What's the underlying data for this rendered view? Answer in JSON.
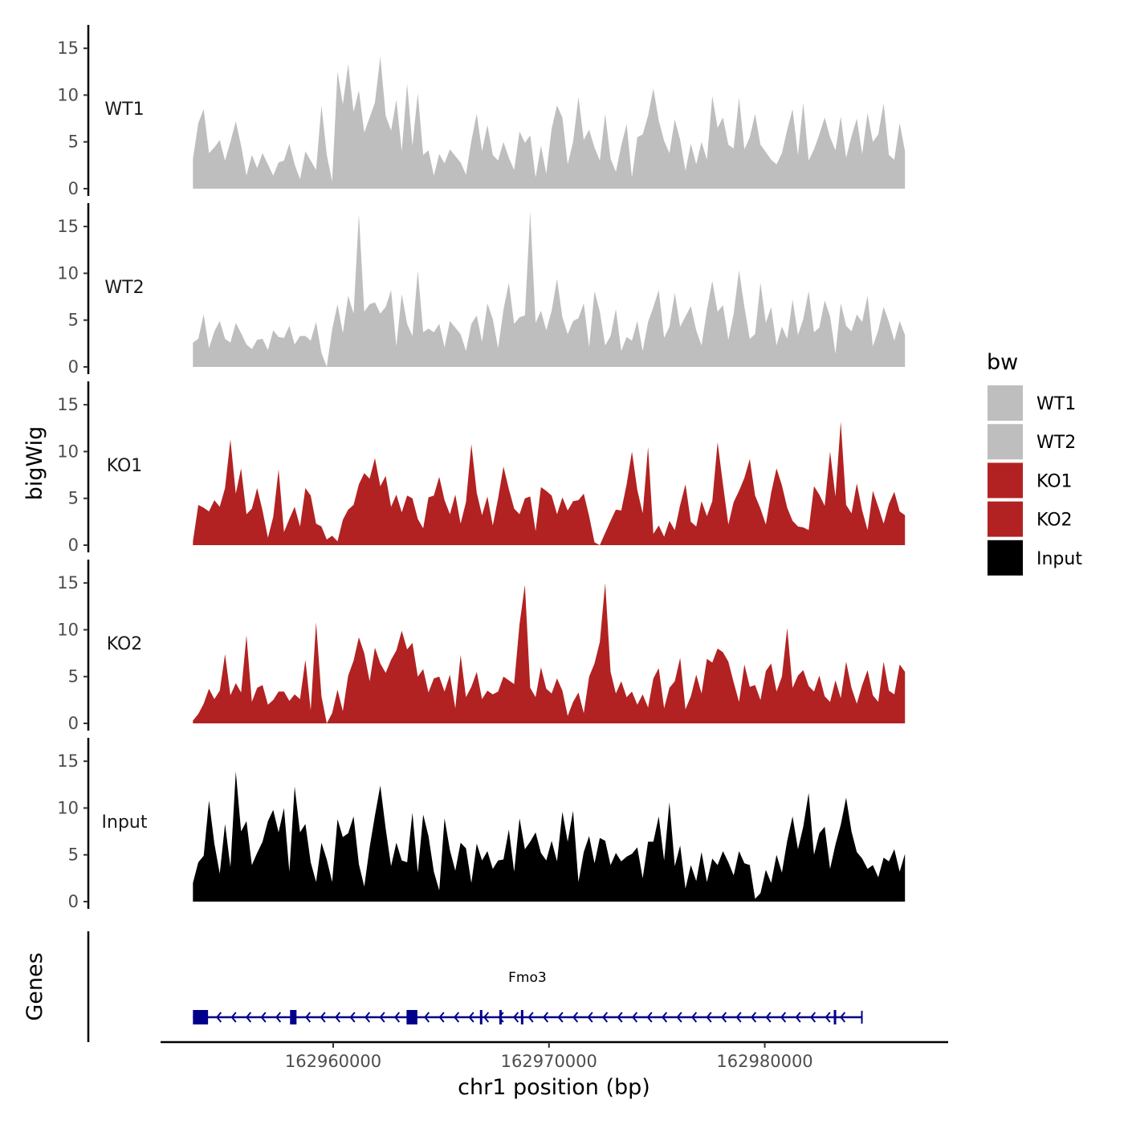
{
  "chart_data": {
    "type": "area",
    "y_axis_title": "bigWig",
    "x_axis_title": "chr1 position (bp)",
    "x_range": [
      162953500,
      162986500
    ],
    "x_limits": [
      162952000,
      162988500
    ],
    "x_ticks": [
      162960000,
      162970000,
      162980000
    ],
    "x_tick_labels": [
      "162960000",
      "162970000",
      "162980000"
    ],
    "y_range": [
      0,
      17.5
    ],
    "y_ticks": [
      0,
      5,
      10,
      15
    ],
    "y_tick_labels": [
      "0",
      "5",
      "10",
      "15"
    ],
    "legend": {
      "title": "bw",
      "placement": "right",
      "entries": [
        {
          "label": "WT1",
          "color": "#bebebe"
        },
        {
          "label": "WT2",
          "color": "#bebebe"
        },
        {
          "label": "KO1",
          "color": "#b22222"
        },
        {
          "label": "KO2",
          "color": "#b22222"
        },
        {
          "label": "Input",
          "color": "#000000"
        }
      ]
    },
    "series": [
      {
        "name": "WT1",
        "color": "#bebebe",
        "values": [
          3.2,
          7.0,
          8.5,
          3.8,
          4.4,
          5.2,
          3.0,
          5.0,
          7.2,
          4.6,
          1.4,
          3.6,
          2.2,
          3.8,
          2.6,
          1.4,
          2.8,
          3.0,
          4.8,
          2.6,
          1.0,
          4.0,
          3.0,
          2.0,
          8.9,
          3.6,
          0.8,
          12.5,
          9.0,
          13.3,
          8.2,
          10.5,
          6.0,
          7.6,
          9.2,
          14.1,
          7.8,
          6.2,
          9.5,
          4.0,
          11.2,
          4.6,
          10.2,
          3.6,
          4.1,
          1.4,
          3.7,
          2.7,
          4.2,
          3.5,
          2.8,
          1.5,
          5.1,
          8.0,
          4.0,
          6.8,
          3.6,
          3.0,
          5.0,
          3.3,
          2.0,
          6.1,
          4.9,
          5.7,
          1.2,
          4.6,
          1.6,
          6.4,
          8.9,
          7.6,
          2.6,
          5.0,
          9.8,
          5.2,
          6.3,
          4.4,
          3.0,
          8.0,
          3.2,
          1.8,
          4.6,
          6.9,
          1.2,
          5.5,
          5.8,
          7.8,
          10.7,
          7.3,
          5.1,
          3.8,
          7.4,
          5.2,
          1.9,
          4.8,
          2.6,
          5.0,
          3.1,
          9.9,
          6.5,
          7.6,
          4.7,
          4.3,
          9.7,
          4.2,
          5.5,
          8.0,
          4.7,
          3.9,
          3.1,
          2.6,
          3.8,
          6.3,
          8.5,
          3.6,
          9.2,
          3.0,
          4.2,
          5.8,
          7.6,
          5.5,
          4.1,
          7.7,
          3.3,
          5.6,
          7.5,
          3.7,
          8.1,
          5.0,
          5.8,
          9.1,
          3.6,
          3.1,
          7.0,
          4.0
        ]
      },
      {
        "name": "WT2",
        "color": "#bebebe",
        "values": [
          2.6,
          3.0,
          5.6,
          2.0,
          3.8,
          4.9,
          3.0,
          2.6,
          4.7,
          3.6,
          2.4,
          1.9,
          2.9,
          3.0,
          1.8,
          3.9,
          3.2,
          3.1,
          4.4,
          2.4,
          3.3,
          3.3,
          2.8,
          4.8,
          1.5,
          0.0,
          4.0,
          6.7,
          3.6,
          7.6,
          5.7,
          16.3,
          5.9,
          6.7,
          6.9,
          5.7,
          6.4,
          8.2,
          2.2,
          7.8,
          4.6,
          3.3,
          10.3,
          3.7,
          4.1,
          3.7,
          4.6,
          2.1,
          4.9,
          4.2,
          3.5,
          1.7,
          4.6,
          5.5,
          2.7,
          6.8,
          5.1,
          2.0,
          6.1,
          9.0,
          4.6,
          5.3,
          5.5,
          16.6,
          4.7,
          6.0,
          3.9,
          6.0,
          9.4,
          5.3,
          3.5,
          4.9,
          5.2,
          6.8,
          2.1,
          8.1,
          5.9,
          2.3,
          3.3,
          6.2,
          1.7,
          3.2,
          2.8,
          4.9,
          1.7,
          4.8,
          6.4,
          8.2,
          3.1,
          4.3,
          7.9,
          4.3,
          5.4,
          6.5,
          3.9,
          2.3,
          6.1,
          9.2,
          5.9,
          6.6,
          2.9,
          5.7,
          10.3,
          6.4,
          3.0,
          3.5,
          9.0,
          4.7,
          6.4,
          2.3,
          4.3,
          3.0,
          7.2,
          3.4,
          5.1,
          8.1,
          3.7,
          4.2,
          7.1,
          5.4,
          1.4,
          6.8,
          4.4,
          3.8,
          5.6,
          4.8,
          7.6,
          2.2,
          3.9,
          6.4,
          4.8,
          2.8,
          4.9,
          3.4
        ]
      },
      {
        "name": "KO1",
        "color": "#b22222",
        "values": [
          0.4,
          4.3,
          4.0,
          3.6,
          4.8,
          4.1,
          6.1,
          11.3,
          5.5,
          8.2,
          3.3,
          3.9,
          6.1,
          3.7,
          0.8,
          3.0,
          8.1,
          1.4,
          2.8,
          4.1,
          2.0,
          6.1,
          5.3,
          2.3,
          2.0,
          0.6,
          1.0,
          0.4,
          2.7,
          3.8,
          4.3,
          6.5,
          7.7,
          7.1,
          9.3,
          6.3,
          7.4,
          4.1,
          5.4,
          3.5,
          5.3,
          5.0,
          2.8,
          1.8,
          5.1,
          5.3,
          7.3,
          4.8,
          3.3,
          5.4,
          2.3,
          4.6,
          10.8,
          5.6,
          3.2,
          5.2,
          2.1,
          5.0,
          8.4,
          6.0,
          3.9,
          3.3,
          5.0,
          5.2,
          1.5,
          6.2,
          5.8,
          5.3,
          3.3,
          5.1,
          3.7,
          4.7,
          4.8,
          5.5,
          3.1,
          0.3,
          0.0,
          1.3,
          2.6,
          3.8,
          3.7,
          6.5,
          10.0,
          5.9,
          3.4,
          10.5,
          1.2,
          2.1,
          0.9,
          2.6,
          1.6,
          4.3,
          6.5,
          2.5,
          2.0,
          4.7,
          3.1,
          4.7,
          11.0,
          6.5,
          2.2,
          4.6,
          5.8,
          7.2,
          9.2,
          5.3,
          3.9,
          2.2,
          5.6,
          8.2,
          6.4,
          4.0,
          2.6,
          2.0,
          1.9,
          1.6,
          6.3,
          5.4,
          4.2,
          10.0,
          5.2,
          13.2,
          4.3,
          3.4,
          6.6,
          3.7,
          1.6,
          5.8,
          4.1,
          2.3,
          4.4,
          5.7,
          3.6,
          3.2
        ]
      },
      {
        "name": "KO2",
        "color": "#b22222",
        "values": [
          0.3,
          1.0,
          2.1,
          3.7,
          2.6,
          3.5,
          7.4,
          3.0,
          4.3,
          3.3,
          9.4,
          2.3,
          3.8,
          4.1,
          2.0,
          2.5,
          3.4,
          3.4,
          2.4,
          3.1,
          2.6,
          6.8,
          1.4,
          10.8,
          2.9,
          0.0,
          1.1,
          3.6,
          1.3,
          5.1,
          6.7,
          9.2,
          7.5,
          4.5,
          8.1,
          6.4,
          5.4,
          6.8,
          7.8,
          9.9,
          7.9,
          8.6,
          5.0,
          5.8,
          3.3,
          4.8,
          5.0,
          3.4,
          5.2,
          1.6,
          7.3,
          2.8,
          3.9,
          5.5,
          2.6,
          3.5,
          3.1,
          3.4,
          5.0,
          4.6,
          4.2,
          10.6,
          14.8,
          3.8,
          2.8,
          6.0,
          3.7,
          3.2,
          4.8,
          3.5,
          0.8,
          2.3,
          3.3,
          1.1,
          5.0,
          6.4,
          8.7,
          15.0,
          5.5,
          3.2,
          4.5,
          2.8,
          3.4,
          2.0,
          3.1,
          1.7,
          4.8,
          5.9,
          1.6,
          3.8,
          4.5,
          7.0,
          1.5,
          2.9,
          5.2,
          3.2,
          6.9,
          6.5,
          8.0,
          7.6,
          6.6,
          4.4,
          2.3,
          6.3,
          3.9,
          4.1,
          2.5,
          5.6,
          6.4,
          3.4,
          5.0,
          10.2,
          3.8,
          5.1,
          5.7,
          4.0,
          3.4,
          5.1,
          2.9,
          2.3,
          4.6,
          2.7,
          6.6,
          3.8,
          2.1,
          4.1,
          5.7,
          3.0,
          2.3,
          6.6,
          3.5,
          3.1,
          6.3,
          5.5
        ]
      },
      {
        "name": "Input",
        "color": "#000000",
        "values": [
          2.0,
          4.2,
          4.9,
          10.8,
          6.2,
          3.0,
          8.3,
          3.7,
          13.9,
          7.5,
          8.6,
          3.9,
          5.2,
          6.4,
          8.6,
          9.8,
          7.4,
          10.0,
          3.2,
          12.3,
          7.4,
          8.3,
          4.2,
          2.1,
          6.3,
          4.5,
          2.1,
          8.8,
          6.9,
          7.3,
          9.1,
          4.0,
          1.6,
          5.8,
          9.2,
          12.4,
          7.8,
          3.8,
          6.3,
          4.4,
          4.2,
          9.5,
          3.1,
          9.3,
          7.0,
          3.2,
          1.2,
          8.9,
          5.5,
          3.3,
          6.3,
          5.7,
          2.0,
          6.2,
          4.4,
          5.4,
          3.5,
          4.4,
          4.5,
          7.7,
          3.2,
          8.9,
          5.6,
          6.4,
          7.4,
          5.2,
          4.4,
          6.5,
          4.3,
          9.6,
          6.4,
          9.7,
          2.1,
          5.3,
          7.0,
          4.1,
          6.8,
          6.5,
          3.9,
          5.2,
          4.3,
          4.8,
          5.1,
          5.8,
          2.5,
          6.4,
          6.4,
          9.1,
          4.4,
          10.6,
          3.8,
          6.0,
          1.4,
          3.9,
          2.2,
          5.3,
          2.1,
          4.6,
          3.9,
          5.4,
          4.2,
          2.8,
          5.4,
          4.1,
          3.9,
          0.3,
          0.9,
          3.4,
          2.0,
          5.0,
          3.1,
          6.5,
          9.1,
          5.6,
          8.0,
          11.6,
          5.0,
          7.3,
          8.0,
          3.5,
          6.1,
          8.2,
          11.1,
          7.5,
          5.3,
          4.6,
          3.5,
          3.9,
          2.6,
          4.7,
          4.3,
          5.6,
          3.2,
          5.1
        ]
      }
    ],
    "gene_track": {
      "track_label": "Genes",
      "gene_name": "Fmo3",
      "color": "#00008b",
      "strand": "-",
      "start": 162953500,
      "end": 162984500,
      "exons": [
        {
          "start": 162953500,
          "end": 162954200
        },
        {
          "start": 162958000,
          "end": 162958300
        },
        {
          "start": 162963400,
          "end": 162963900
        },
        {
          "start": 162966800,
          "end": 162966900
        },
        {
          "start": 162967700,
          "end": 162967800
        },
        {
          "start": 162968700,
          "end": 162968800
        },
        {
          "start": 162983200,
          "end": 162983300
        }
      ]
    }
  }
}
